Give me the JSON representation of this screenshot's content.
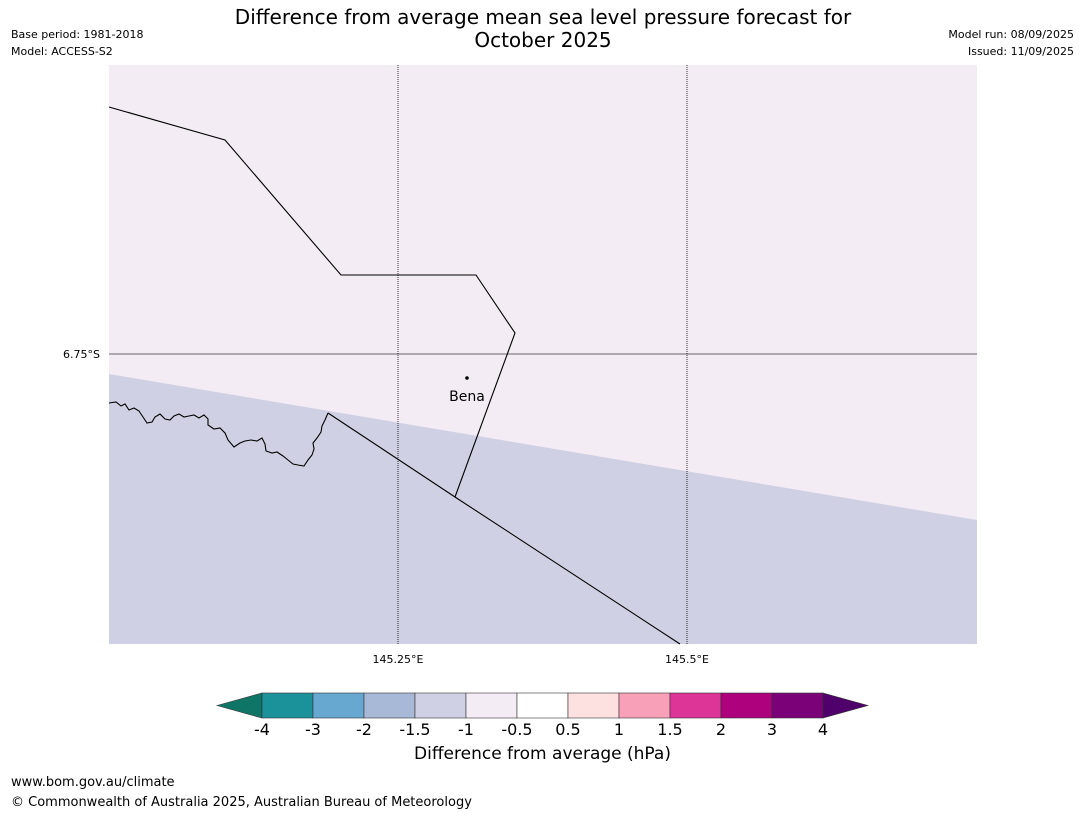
{
  "header": {
    "title_line1": "Difference from average mean sea level pressure forecast for",
    "title_line2": "October 2025",
    "base_period": "Base period: 1981-2018",
    "model": "Model: ACCESS-S2",
    "model_run": "Model run: 08/09/2025",
    "issued": "Issued: 11/09/2025"
  },
  "map": {
    "lat_label": "6.75°S",
    "lon_labels": [
      "145.25°E",
      "145.5°E"
    ],
    "place_name": "Bena",
    "fill_colors": {
      "upper_region": "#f4ecf5",
      "lower_region": "#d0d0e4"
    }
  },
  "colorbar": {
    "title": "Difference from average (hPa)",
    "tick_labels": [
      "-4",
      "-3",
      "-2",
      "-1.5",
      "-1",
      "-0.5",
      "0.5",
      "1",
      "1.5",
      "2",
      "3",
      "4"
    ],
    "colors": [
      "#0f7566",
      "#1b9199",
      "#66a8cf",
      "#a7b9d6",
      "#d0d0e4",
      "#f4ecf5",
      "#ffffff",
      "#fde0e0",
      "#f8a0b8",
      "#dd3497",
      "#ad017e",
      "#7a0178",
      "#4f006a"
    ]
  },
  "footer": {
    "website": "www.bom.gov.au/climate",
    "copyright": "© Commonwealth of Australia 2025, Australian Bureau of Meteorology"
  }
}
